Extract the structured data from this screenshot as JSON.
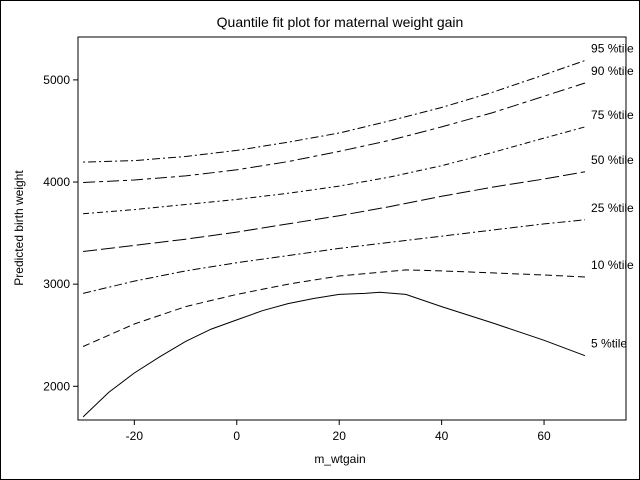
{
  "chart_data": {
    "type": "line",
    "title": "Quantile fit plot for maternal weight gain",
    "xlabel": "m_wtgain",
    "ylabel": "Predicted birth weight",
    "xlim": [
      -31,
      76
    ],
    "ylim": [
      1670,
      5420
    ],
    "xticks": [
      -20,
      0,
      20,
      40,
      60
    ],
    "yticks": [
      2000,
      3000,
      4000,
      5000
    ],
    "grid": false,
    "legend": "labels at right end of each line",
    "series": [
      {
        "name": "95 %tile",
        "dash": "2 3 8 3",
        "x": [
          -30,
          -20,
          -10,
          0,
          10,
          20,
          30,
          40,
          50,
          60,
          68
        ],
        "y": [
          4195,
          4210,
          4250,
          4310,
          4390,
          4480,
          4600,
          4730,
          4880,
          5050,
          5190
        ]
      },
      {
        "name": "90 %tile",
        "dash": "12 4 4 4",
        "x": [
          -30,
          -20,
          -10,
          0,
          10,
          20,
          30,
          40,
          50,
          60,
          68
        ],
        "y": [
          3995,
          4020,
          4060,
          4120,
          4200,
          4300,
          4410,
          4540,
          4680,
          4840,
          4970
        ]
      },
      {
        "name": "75 %tile",
        "dash": "6 3 2 3",
        "x": [
          -30,
          -20,
          -10,
          0,
          10,
          20,
          30,
          40,
          50,
          60,
          68
        ],
        "y": [
          3690,
          3730,
          3780,
          3830,
          3890,
          3960,
          4050,
          4160,
          4290,
          4430,
          4540
        ]
      },
      {
        "name": "50 %tile",
        "dash": "14 4",
        "x": [
          -30,
          -20,
          -10,
          0,
          10,
          20,
          30,
          40,
          50,
          60,
          68
        ],
        "y": [
          3320,
          3380,
          3440,
          3510,
          3590,
          3670,
          3760,
          3860,
          3950,
          4030,
          4100
        ]
      },
      {
        "name": "25 %tile",
        "dash": "8 3 2 3",
        "x": [
          -30,
          -20,
          -10,
          0,
          10,
          20,
          30,
          40,
          50,
          60,
          68
        ],
        "y": [
          2910,
          3030,
          3130,
          3210,
          3280,
          3350,
          3410,
          3470,
          3530,
          3590,
          3630
        ]
      },
      {
        "name": "10 %tile",
        "dash": "7 4",
        "x": [
          -30,
          -20,
          -10,
          0,
          10,
          20,
          33,
          40,
          50,
          60,
          68
        ],
        "y": [
          2390,
          2610,
          2780,
          2900,
          3000,
          3080,
          3140,
          3130,
          3110,
          3090,
          3070
        ]
      },
      {
        "name": "5 %tile",
        "dash": "",
        "x": [
          -30,
          -25,
          -20,
          -15,
          -10,
          -5,
          0,
          5,
          10,
          15,
          20,
          25,
          28,
          33,
          40,
          50,
          60,
          68
        ],
        "y": [
          1700,
          1940,
          2130,
          2290,
          2440,
          2560,
          2650,
          2740,
          2810,
          2860,
          2900,
          2910,
          2920,
          2900,
          2780,
          2620,
          2450,
          2300
        ]
      }
    ]
  }
}
